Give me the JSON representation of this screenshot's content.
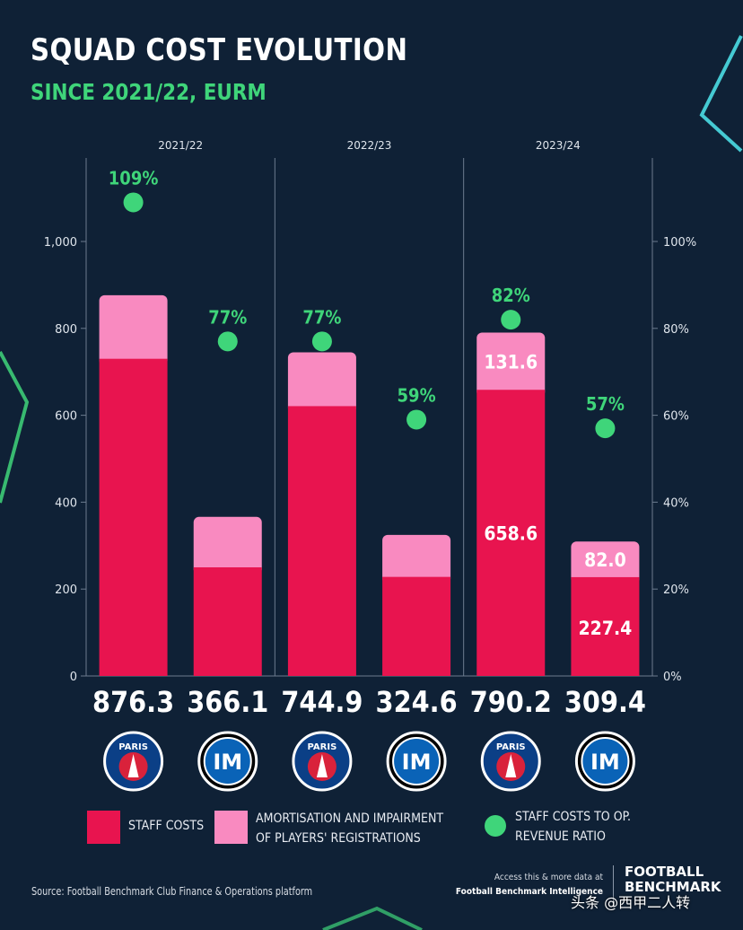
{
  "title": "SQUAD COST EVOLUTION",
  "subtitle": "SINCE 2021/22, EURM",
  "chart_data": {
    "type": "bar",
    "stacked": true,
    "seasons": [
      "2021/22",
      "2022/23",
      "2023/24"
    ],
    "clubs": [
      "PSG",
      "Inter",
      "PSG",
      "Inter",
      "PSG",
      "Inter"
    ],
    "totals": [
      "876.3",
      "366.1",
      "744.9",
      "324.6",
      "790.2",
      "309.4"
    ],
    "series": [
      {
        "name": "STAFF COSTS",
        "color": "#e8144f",
        "values": [
          730,
          250,
          621,
          228,
          658.6,
          227.4
        ]
      },
      {
        "name": "AMORTISATION AND IMPAIRMENT OF PLAYERS' REGISTRATIONS",
        "color": "#f98ac0",
        "values": [
          146.3,
          116.1,
          123.9,
          96.6,
          131.6,
          82.0
        ]
      }
    ],
    "ratio": {
      "name": "STAFF COSTS TO OP. REVENUE RATIO",
      "color": "#3fd57a",
      "values": [
        109,
        77,
        77,
        59,
        82,
        57
      ]
    },
    "bar_labels": [
      {
        "bar": 4,
        "series": 1,
        "text": "131.6"
      },
      {
        "bar": 4,
        "series": 0,
        "text": "658.6"
      },
      {
        "bar": 5,
        "series": 1,
        "text": "82.0"
      },
      {
        "bar": 5,
        "series": 0,
        "text": "227.4"
      }
    ],
    "ratio_labels": [
      "109%",
      "77%",
      "77%",
      "59%",
      "82%",
      "57%"
    ],
    "y_left": {
      "ticks": [
        "0",
        "200",
        "400",
        "600",
        "800",
        "1,000"
      ],
      "values": [
        0,
        200,
        400,
        600,
        800,
        1000
      ],
      "range": [
        0,
        1000
      ]
    },
    "y_right": {
      "ticks": [
        "0%",
        "20%",
        "40%",
        "60%",
        "80%",
        "100%"
      ],
      "values": [
        0,
        20,
        40,
        60,
        80,
        100
      ],
      "range": [
        0,
        100
      ]
    },
    "logos": [
      {
        "club": "PSG",
        "text": "PARIS"
      },
      {
        "club": "Inter",
        "text": "IM"
      },
      {
        "club": "PSG",
        "text": "PARIS"
      },
      {
        "club": "Inter",
        "text": "IM"
      },
      {
        "club": "PSG",
        "text": "PARIS"
      },
      {
        "club": "Inter",
        "text": "IM"
      }
    ],
    "colors": {
      "background": "#0f2136",
      "accent": "#3fd57a",
      "staff": "#e8144f",
      "amortisation": "#f98ac0"
    }
  },
  "legend": {
    "staff": "STAFF COSTS",
    "amortisation": "AMORTISATION AND IMPAIRMENT\nOF PLAYERS' REGISTRATIONS",
    "ratio": "STAFF COSTS TO OP.\nREVENUE RATIO"
  },
  "footer": {
    "source": "Source: Football Benchmark Club Finance & Operations platform",
    "access_line1": "Access this & more data at",
    "access_line2": "Football Benchmark Intelligence",
    "brand": "FOOTBALL\nBENCHMARK"
  },
  "watermark": "头条 @西甲二人转"
}
